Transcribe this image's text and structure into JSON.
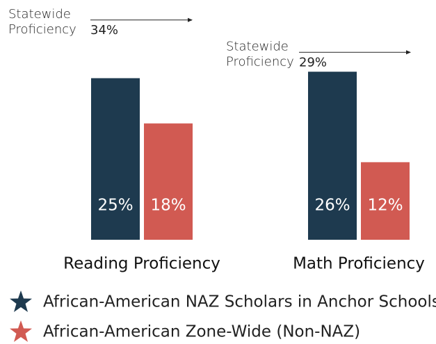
{
  "chart_data": {
    "type": "bar",
    "categories": [
      "Reading Proficiency",
      "Math Proficiency"
    ],
    "series": [
      {
        "name": "African-American NAZ Scholars in Anchor Schools",
        "color": "#1e3a4f",
        "values": [
          25,
          26
        ],
        "value_labels": [
          "25%",
          "26%"
        ]
      },
      {
        "name": "African-American Zone-Wide (Non-NAZ)",
        "color": "#d15a52",
        "values": [
          18,
          12
        ],
        "value_labels": [
          "18%",
          "12%"
        ]
      }
    ],
    "annotations": [
      {
        "text": [
          "Statewide",
          "Proficiency"
        ],
        "value": 34,
        "value_label": "34%"
      },
      {
        "text": [
          "Statewide",
          "Proficiency"
        ],
        "value": 29,
        "value_label": "29%"
      }
    ]
  }
}
